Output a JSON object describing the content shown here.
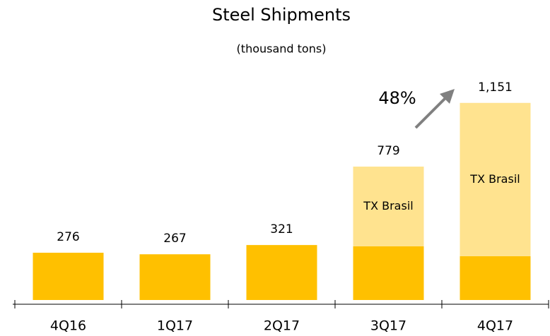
{
  "chart_data": {
    "type": "stacked_bar",
    "title": "Steel Shipments",
    "subtitle": "(thousand tons)",
    "categories": [
      "4Q16",
      "1Q17",
      "2Q17",
      "3Q17",
      "4Q17"
    ],
    "series": [
      {
        "color": "#ffc000",
        "values": [
          276,
          267,
          321,
          314,
          256
        ]
      },
      {
        "name": "TX Brasil",
        "color": "#ffe38f",
        "values": [
          null,
          null,
          null,
          465,
          895
        ]
      }
    ],
    "totals": [
      276,
      267,
      321,
      779,
      1151
    ],
    "total_labels": [
      "276",
      "267",
      "321",
      "779",
      "1,151"
    ],
    "annotations": [
      {
        "text": "48%"
      }
    ]
  }
}
